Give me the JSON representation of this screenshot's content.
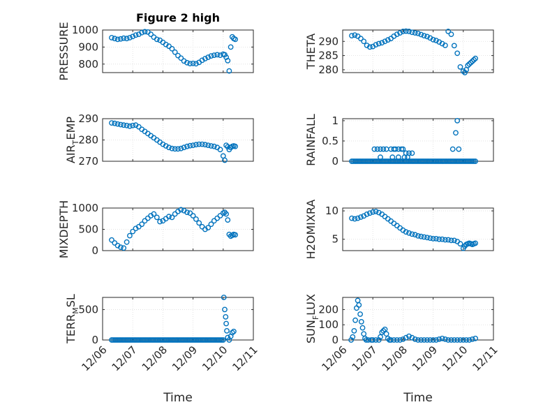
{
  "figure": {
    "title": "Figure 2 high",
    "marker_color": "#0072BD"
  },
  "chart_data": [
    {
      "type": "scatter",
      "ylabel": "PRESSURE",
      "xlabel": "",
      "title": "Figure 2 high",
      "ylim": [
        750,
        1000
      ],
      "yticks": [
        800,
        900,
        1000
      ],
      "grid": true,
      "x": [
        0.3,
        0.4,
        0.5,
        0.6,
        0.7,
        0.8,
        0.9,
        1.0,
        1.1,
        1.2,
        1.3,
        1.4,
        1.5,
        1.6,
        1.7,
        1.8,
        1.9,
        2.0,
        2.1,
        2.2,
        2.3,
        2.4,
        2.5,
        2.6,
        2.7,
        2.8,
        2.9,
        3.0,
        3.1,
        3.2,
        3.3,
        3.4,
        3.5,
        3.6,
        3.7,
        3.8,
        3.9,
        4.0,
        4.05,
        4.1,
        4.15,
        4.2,
        4.25,
        4.3,
        4.35,
        4.4
      ],
      "y": [
        955,
        950,
        945,
        948,
        952,
        950,
        955,
        962,
        970,
        975,
        985,
        990,
        988,
        975,
        958,
        945,
        940,
        928,
        915,
        905,
        890,
        870,
        850,
        835,
        818,
        808,
        803,
        804,
        802,
        810,
        822,
        832,
        840,
        848,
        852,
        855,
        852,
        858,
        855,
        840,
        820,
        760,
        900,
        960,
        950,
        945
      ]
    },
    {
      "type": "scatter",
      "ylabel": "THETA",
      "xlabel": "",
      "ylim": [
        279,
        294
      ],
      "yticks": [
        280,
        285,
        290
      ],
      "grid": true,
      "x": [
        0.3,
        0.4,
        0.5,
        0.6,
        0.7,
        0.8,
        0.9,
        1.0,
        1.1,
        1.2,
        1.3,
        1.4,
        1.5,
        1.6,
        1.7,
        1.8,
        1.9,
        2.0,
        2.1,
        2.2,
        2.3,
        2.4,
        2.5,
        2.6,
        2.7,
        2.8,
        2.9,
        3.0,
        3.1,
        3.2,
        3.3,
        3.4,
        3.5,
        3.6,
        3.7,
        3.8,
        3.9,
        4.0,
        4.05,
        4.1,
        4.15,
        4.2,
        4.25,
        4.3,
        4.35,
        4.4
      ],
      "y": [
        292,
        292.2,
        291.8,
        291,
        290,
        288.6,
        288,
        288.2,
        288.8,
        289.2,
        289.5,
        290,
        290.5,
        291,
        291.8,
        292.5,
        293,
        293.5,
        293.6,
        293.5,
        293.2,
        293,
        292.8,
        292.4,
        292,
        291.7,
        291.2,
        290.6,
        290.3,
        289.8,
        289.2,
        288.6,
        293.5,
        292.5,
        288.5,
        285.8,
        281,
        279.5,
        279,
        280,
        281.5,
        282,
        282.5,
        283,
        283.5,
        284
      ]
    },
    {
      "type": "scatter",
      "ylabel": "AIR_T_EMP",
      "ylabel_main": "AIR",
      "ylabel_sub": "T",
      "ylabel_rest": "EMP",
      "xlabel": "",
      "ylim": [
        270,
        290
      ],
      "yticks": [
        270,
        280,
        290
      ],
      "grid": true,
      "x": [
        0.3,
        0.4,
        0.5,
        0.6,
        0.7,
        0.8,
        0.9,
        1.0,
        1.1,
        1.2,
        1.3,
        1.4,
        1.5,
        1.6,
        1.7,
        1.8,
        1.9,
        2.0,
        2.1,
        2.2,
        2.3,
        2.4,
        2.5,
        2.6,
        2.7,
        2.8,
        2.9,
        3.0,
        3.1,
        3.2,
        3.3,
        3.4,
        3.5,
        3.6,
        3.7,
        3.8,
        3.9,
        4.0,
        4.05,
        4.1,
        4.15,
        4.2,
        4.25,
        4.3,
        4.35,
        4.4
      ],
      "y": [
        288,
        287.8,
        287.5,
        287.2,
        287,
        286.8,
        286.5,
        286.8,
        287,
        286.2,
        285,
        284,
        283,
        282,
        281,
        280,
        279,
        278,
        277.2,
        276.5,
        276,
        275.8,
        275.8,
        276,
        276.5,
        277,
        277.3,
        277.5,
        277.8,
        278,
        278,
        277.8,
        277.5,
        277.2,
        277,
        276.5,
        275.5,
        272.5,
        270.5,
        277.5,
        276.8,
        275.5,
        276.5,
        277,
        277.2,
        277
      ]
    },
    {
      "type": "scatter",
      "ylabel": "RAINFALL",
      "xlabel": "",
      "ylim": [
        0,
        1.05
      ],
      "yticks": [
        0,
        0.5,
        1
      ],
      "grid": true,
      "x": [
        0.3,
        0.35,
        0.4,
        0.45,
        0.5,
        0.55,
        0.6,
        0.65,
        0.7,
        0.75,
        0.8,
        0.85,
        0.9,
        0.95,
        1.0,
        1.05,
        1.1,
        1.15,
        1.2,
        1.25,
        1.3,
        1.35,
        1.4,
        1.45,
        1.5,
        1.55,
        1.6,
        1.65,
        1.7,
        1.75,
        1.8,
        1.85,
        1.9,
        1.95,
        2.0,
        2.05,
        2.1,
        2.15,
        2.2,
        2.25,
        2.3,
        2.35,
        2.4,
        2.45,
        2.5,
        2.55,
        2.6,
        2.65,
        2.7,
        2.75,
        2.8,
        2.85,
        2.9,
        2.95,
        3.0,
        3.05,
        3.1,
        3.15,
        3.2,
        3.25,
        3.3,
        3.35,
        3.4,
        3.45,
        3.5,
        3.55,
        3.6,
        3.65,
        3.7,
        3.75,
        3.8,
        3.85,
        3.9,
        3.95,
        4.0,
        4.05,
        4.1,
        4.15,
        4.2,
        4.25,
        4.3,
        4.35,
        4.4,
        1.05,
        1.15,
        1.25,
        1.35,
        1.45,
        1.6,
        1.7,
        1.75,
        1.85,
        1.95,
        2.0,
        2.1,
        2.2,
        2.3,
        1.25,
        1.65,
        1.85,
        2.05,
        2.15,
        3.65,
        3.75,
        3.8,
        3.85
      ],
      "y": [
        0,
        0,
        0,
        0,
        0,
        0,
        0,
        0,
        0,
        0,
        0,
        0,
        0,
        0,
        0,
        0,
        0,
        0,
        0,
        0,
        0,
        0,
        0,
        0,
        0,
        0,
        0,
        0,
        0,
        0,
        0,
        0,
        0,
        0,
        0,
        0,
        0,
        0,
        0,
        0,
        0,
        0,
        0,
        0,
        0,
        0,
        0,
        0,
        0,
        0,
        0,
        0,
        0,
        0,
        0,
        0,
        0,
        0,
        0,
        0,
        0,
        0,
        0,
        0,
        0,
        0,
        0,
        0,
        0,
        0,
        0,
        0,
        0,
        0,
        0,
        0,
        0,
        0,
        0,
        0,
        0,
        0,
        0,
        0.3,
        0.3,
        0.3,
        0.3,
        0.3,
        0.3,
        0.3,
        0.3,
        0.3,
        0.3,
        0.3,
        0.2,
        0.2,
        0.2,
        0.1,
        0.1,
        0.1,
        0.1,
        0.1,
        0.3,
        0.7,
        1.0,
        0.3
      ]
    },
    {
      "type": "scatter",
      "ylabel": "MIXDEPTH",
      "xlabel": "",
      "ylim": [
        0,
        1000
      ],
      "yticks": [
        0,
        500,
        1000
      ],
      "grid": true,
      "x": [
        0.3,
        0.4,
        0.5,
        0.6,
        0.7,
        0.8,
        0.9,
        1.0,
        1.1,
        1.2,
        1.3,
        1.4,
        1.5,
        1.6,
        1.7,
        1.8,
        1.9,
        2.0,
        2.1,
        2.2,
        2.3,
        2.4,
        2.5,
        2.6,
        2.7,
        2.8,
        2.9,
        3.0,
        3.1,
        3.2,
        3.3,
        3.4,
        3.5,
        3.6,
        3.7,
        3.8,
        3.9,
        4.0,
        4.05,
        4.1,
        4.15,
        4.2,
        4.25,
        4.3,
        4.35,
        4.4
      ],
      "y": [
        250,
        180,
        120,
        80,
        60,
        200,
        350,
        450,
        520,
        560,
        620,
        700,
        760,
        820,
        860,
        780,
        680,
        700,
        750,
        800,
        780,
        860,
        920,
        960,
        940,
        900,
        880,
        820,
        740,
        650,
        560,
        500,
        540,
        620,
        700,
        760,
        820,
        880,
        900,
        860,
        720,
        380,
        340,
        360,
        380,
        370
      ]
    },
    {
      "type": "scatter",
      "ylabel": "H2OMIXRA",
      "xlabel": "",
      "ylim": [
        3,
        10.5
      ],
      "yticks": [
        5,
        10
      ],
      "grid": true,
      "x": [
        0.3,
        0.4,
        0.5,
        0.6,
        0.7,
        0.8,
        0.9,
        1.0,
        1.1,
        1.2,
        1.3,
        1.4,
        1.5,
        1.6,
        1.7,
        1.8,
        1.9,
        2.0,
        2.1,
        2.2,
        2.3,
        2.4,
        2.5,
        2.6,
        2.7,
        2.8,
        2.9,
        3.0,
        3.1,
        3.2,
        3.3,
        3.4,
        3.5,
        3.6,
        3.7,
        3.8,
        3.9,
        4.0,
        4.05,
        4.1,
        4.15,
        4.2,
        4.25,
        4.3,
        4.35,
        4.4
      ],
      "y": [
        8.7,
        8.6,
        8.7,
        8.9,
        9.1,
        9.4,
        9.6,
        9.8,
        9.9,
        9.7,
        9.4,
        9.0,
        8.6,
        8.2,
        7.8,
        7.4,
        7.0,
        6.6,
        6.3,
        6.1,
        5.9,
        5.8,
        5.6,
        5.5,
        5.4,
        5.3,
        5.2,
        5.1,
        5.1,
        5.0,
        5.0,
        4.9,
        4.9,
        4.8,
        4.8,
        4.6,
        4.2,
        3.4,
        3.8,
        4.1,
        4.2,
        4.3,
        4.2,
        4.1,
        4.2,
        4.3
      ]
    },
    {
      "type": "scatter",
      "ylabel": "TERR_M_SL",
      "ylabel_main": "TERR",
      "ylabel_sub": "M",
      "ylabel_rest": "SL",
      "xlabel": "Time",
      "ylim": [
        0,
        700
      ],
      "yticks": [
        0,
        500
      ],
      "grid": true,
      "xtick_labels": [
        "12/06",
        "12/07",
        "12/08",
        "12/09",
        "12/10",
        "12/11"
      ],
      "x": [
        0.3,
        0.35,
        0.4,
        0.45,
        0.5,
        0.55,
        0.6,
        0.65,
        0.7,
        0.75,
        0.8,
        0.85,
        0.9,
        0.95,
        1.0,
        1.05,
        1.1,
        1.15,
        1.2,
        1.25,
        1.3,
        1.35,
        1.4,
        1.45,
        1.5,
        1.55,
        1.6,
        1.65,
        1.7,
        1.75,
        1.8,
        1.85,
        1.9,
        1.95,
        2.0,
        2.05,
        2.1,
        2.15,
        2.2,
        2.25,
        2.3,
        2.35,
        2.4,
        2.45,
        2.5,
        2.55,
        2.6,
        2.65,
        2.7,
        2.75,
        2.8,
        2.85,
        2.9,
        2.95,
        3.0,
        3.05,
        3.1,
        3.15,
        3.2,
        3.25,
        3.3,
        3.35,
        3.4,
        3.45,
        3.5,
        3.55,
        3.6,
        3.65,
        3.7,
        3.75,
        3.8,
        3.85,
        3.9,
        3.95,
        4.0,
        4.02,
        4.05,
        4.08,
        4.1,
        4.12,
        4.15,
        4.2,
        4.25,
        4.3,
        4.35
      ],
      "y": [
        0,
        0,
        0,
        0,
        0,
        0,
        0,
        0,
        0,
        0,
        0,
        0,
        0,
        0,
        0,
        0,
        0,
        0,
        0,
        0,
        0,
        0,
        0,
        0,
        0,
        0,
        0,
        0,
        0,
        0,
        0,
        0,
        0,
        0,
        0,
        0,
        0,
        0,
        0,
        0,
        0,
        0,
        0,
        0,
        0,
        0,
        0,
        0,
        0,
        0,
        0,
        0,
        0,
        0,
        0,
        0,
        0,
        0,
        0,
        0,
        0,
        0,
        0,
        0,
        0,
        0,
        0,
        0,
        0,
        0,
        0,
        0,
        0,
        0,
        0,
        700,
        500,
        380,
        270,
        150,
        40,
        0,
        60,
        120,
        140
      ]
    },
    {
      "type": "scatter",
      "ylabel": "SUN_F_LUX",
      "ylabel_main": "SUN",
      "ylabel_sub": "F",
      "ylabel_rest": "LUX",
      "xlabel": "Time",
      "ylim": [
        0,
        280
      ],
      "yticks": [
        0,
        100,
        200
      ],
      "grid": true,
      "xtick_labels": [
        "12/06",
        "12/07",
        "12/08",
        "12/09",
        "12/10",
        "12/11"
      ],
      "x": [
        0.28,
        0.33,
        0.38,
        0.42,
        0.46,
        0.5,
        0.54,
        0.58,
        0.62,
        0.66,
        0.7,
        0.74,
        0.78,
        0.85,
        0.95,
        1.0,
        1.1,
        1.2,
        1.25,
        1.3,
        1.35,
        1.4,
        1.45,
        1.5,
        1.55,
        1.6,
        1.7,
        1.8,
        1.9,
        2.0,
        2.1,
        2.2,
        2.3,
        2.4,
        2.5,
        2.6,
        2.7,
        2.8,
        2.9,
        3.0,
        3.1,
        3.2,
        3.3,
        3.4,
        3.5,
        3.6,
        3.7,
        3.8,
        3.9,
        4.0,
        4.1,
        4.2,
        4.3,
        4.4
      ],
      "y": [
        0,
        20,
        60,
        130,
        210,
        260,
        230,
        170,
        120,
        80,
        40,
        10,
        0,
        0,
        0,
        0,
        0,
        0,
        20,
        50,
        60,
        70,
        40,
        10,
        0,
        0,
        0,
        0,
        0,
        5,
        15,
        25,
        15,
        5,
        0,
        0,
        0,
        0,
        0,
        0,
        0,
        5,
        10,
        5,
        0,
        0,
        0,
        0,
        0,
        0,
        0,
        0,
        5,
        10
      ]
    }
  ]
}
